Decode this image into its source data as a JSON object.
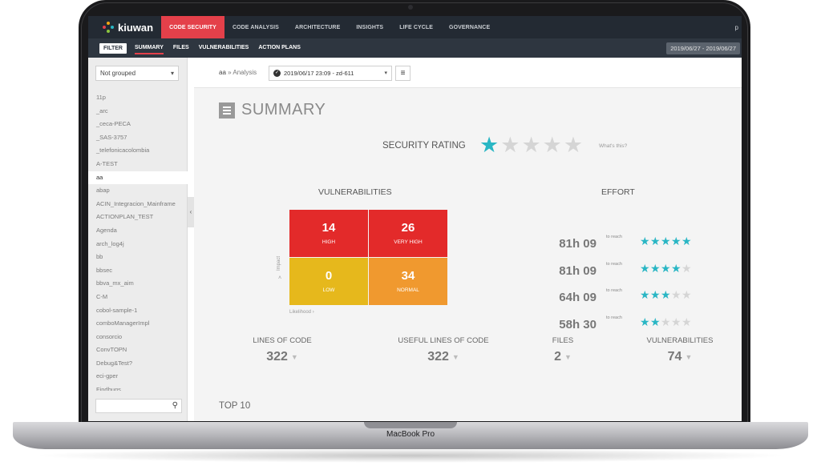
{
  "device": {
    "label": "MacBook Pro"
  },
  "colors": {
    "accent": "#e4404a",
    "star_on": "#29b6c4",
    "star_off": "#d5d5d5",
    "high": "#e32a2a",
    "very_high": "#e32a2a",
    "low": "#e6b81c",
    "normal": "#f0992f"
  },
  "topnav": {
    "brand": "kiuwan",
    "items": [
      "CODE SECURITY",
      "CODE ANALYSIS",
      "ARCHITECTURE",
      "INSIGHTS",
      "LIFE CYCLE",
      "GOVERNANCE"
    ],
    "active_index": 0,
    "user": "p"
  },
  "subnav": {
    "filter_label": "FILTER",
    "items": [
      "SUMMARY",
      "FILES",
      "VULNERABILITIES",
      "ACTION PLANS"
    ],
    "active_index": 0,
    "date_range": "2019/06/27 - 2019/06/27"
  },
  "sidebar": {
    "grouping": "Not grouped",
    "projects": [
      "11p",
      "_arc",
      "_ceca-PECA",
      "_SAS-3757",
      "_telefonicacolombia",
      "A-TEST",
      "aa",
      "abap",
      "ACIN_Integracion_Mainframe",
      "ACTIONPLAN_TEST",
      "Agenda",
      "arch_log4j",
      "bb",
      "bbsec",
      "bbva_mx_aim",
      "C-M",
      "cobol-sample-1",
      "comboManagerImpl",
      "consorcio",
      "ConvTOPN",
      "Debug&Test?",
      "eci-gper",
      "Findbugs"
    ],
    "selected_index": 6,
    "search_placeholder": ""
  },
  "breadcrumb": {
    "app": "aa",
    "section": "» Analysis"
  },
  "analysis_select": {
    "value": "2019/06/17 23:09 - zd-611"
  },
  "summary": {
    "title": "SUMMARY"
  },
  "security_rating": {
    "label": "SECURITY RATING",
    "stars": 1,
    "max_stars": 5,
    "help": "What's this?"
  },
  "vulnerabilities": {
    "title": "VULNERABILITIES",
    "matrix": [
      {
        "count": "14",
        "label": "HIGH",
        "key": "high"
      },
      {
        "count": "26",
        "label": "VERY HIGH",
        "key": "very_high"
      },
      {
        "count": "0",
        "label": "LOW",
        "key": "low"
      },
      {
        "count": "34",
        "label": "NORMAL",
        "key": "normal"
      }
    ],
    "impact_axis": "Impact",
    "likelihood_axis": "Likelihood"
  },
  "effort": {
    "title": "EFFORT",
    "rows": [
      {
        "time": "81h 09",
        "reach": "to reach",
        "stars": 5
      },
      {
        "time": "81h 09",
        "reach": "to reach",
        "stars": 4
      },
      {
        "time": "64h 09",
        "reach": "to reach",
        "stars": 3
      },
      {
        "time": "58h 30",
        "reach": "to reach",
        "stars": 2
      }
    ]
  },
  "stats": [
    {
      "label": "LINES OF CODE",
      "value": "322"
    },
    {
      "label": "USEFUL LINES OF CODE",
      "value": "322"
    },
    {
      "label": "FILES",
      "value": "2"
    },
    {
      "label": "VULNERABILITIES",
      "value": "74"
    }
  ],
  "top10": {
    "title": "TOP 10"
  }
}
